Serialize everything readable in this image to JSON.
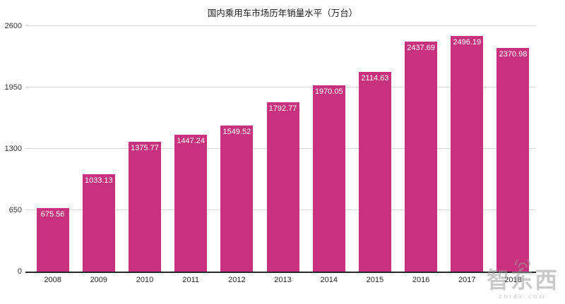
{
  "chart_data": {
    "type": "bar",
    "title": "国内乘用车市场历年销量水平（万台）",
    "categories": [
      "2008",
      "2009",
      "2010",
      "2011",
      "2012",
      "2013",
      "2014",
      "2015",
      "2016",
      "2017",
      "2018"
    ],
    "values": [
      675.56,
      1033.13,
      1375.77,
      1447.24,
      1549.52,
      1792.77,
      1970.05,
      2114.63,
      2437.69,
      2496.19,
      2370.98
    ],
    "value_labels": [
      "675.56",
      "1033.13",
      "1375.77",
      "1447.24",
      "1549.52",
      "1792.77",
      "1970.05",
      "2114.63",
      "2437.69",
      "2496.19",
      "2370.98"
    ],
    "xlabel": "",
    "ylabel": "",
    "ylim": [
      0,
      2600
    ],
    "yticks": [
      0,
      650,
      1300,
      1950,
      2600
    ],
    "grid": true,
    "legend": false,
    "bar_color": "#C7317D",
    "value_label_color": "#FFFFFF",
    "gridline_color": "#D9D9D9",
    "axis_color": "#262626"
  },
  "watermark": {
    "logo_text": "智东西",
    "site_text": "zhidx.com",
    "color": "#9E9E9E"
  }
}
